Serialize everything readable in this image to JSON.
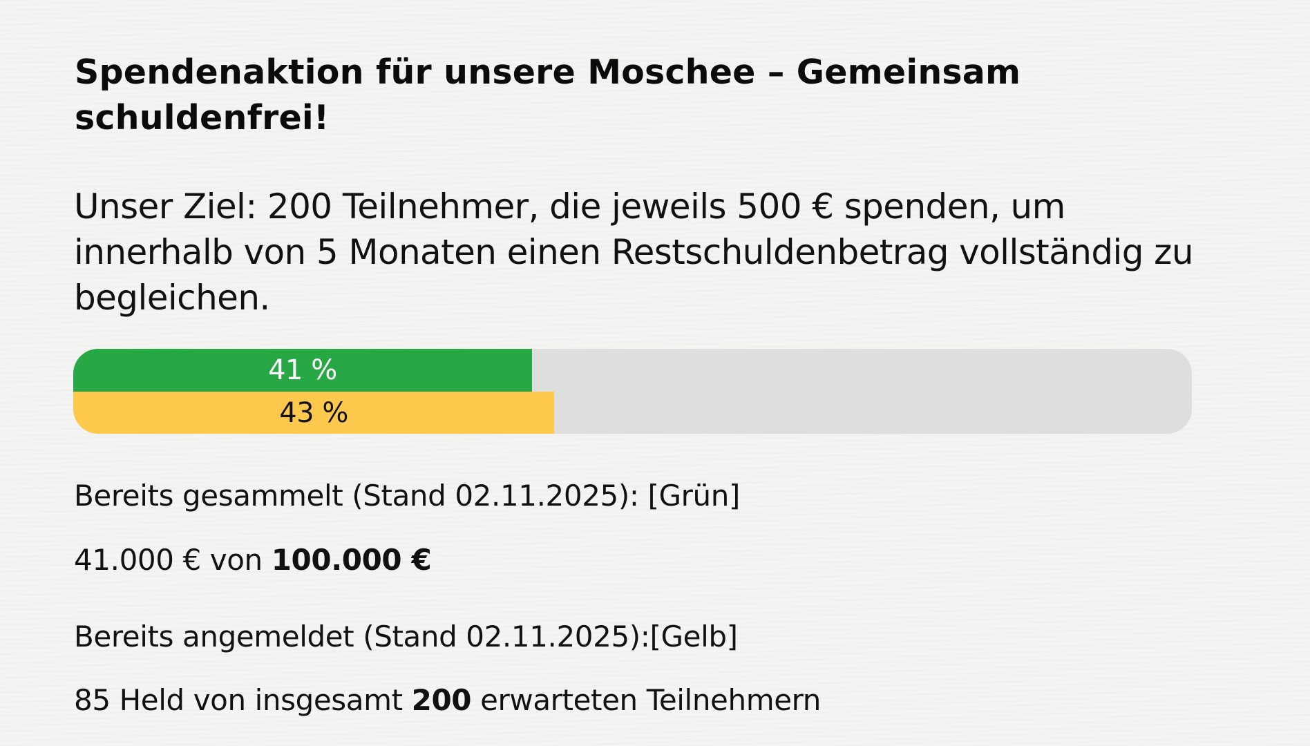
{
  "page": {
    "heading": "Spendenaktion für unsere Moschee – Gemeinsam schuldenfrei!",
    "goal_text": "Unser Ziel: 200 Teilnehmer, die jeweils 500 € spenden, um innerhalb von 5 Monaten einen Restschuldenbetrag vollständig zu begleichen."
  },
  "progress": {
    "colors": {
      "green": "#28a745",
      "yellow": "#ffc94d",
      "track": "#dedede"
    },
    "bars": [
      {
        "name": "gesammelt",
        "color": "green",
        "percent": 41,
        "label": "41 %"
      },
      {
        "name": "angemeldet",
        "color": "yellow",
        "percent": 43,
        "label": "43 %"
      }
    ]
  },
  "collected": {
    "label": "Bereits gesammelt (Stand 02.11.2025): [Grün]",
    "amount": "41.000  €",
    "connector": " von ",
    "goal": "100.000 €"
  },
  "registered": {
    "label": "Bereits angemeldet (Stand 02.11.2025):[Gelb]",
    "count": "85 Held von insgesamt ",
    "total": "200",
    "suffix": " erwarteten Teilnehmern"
  }
}
